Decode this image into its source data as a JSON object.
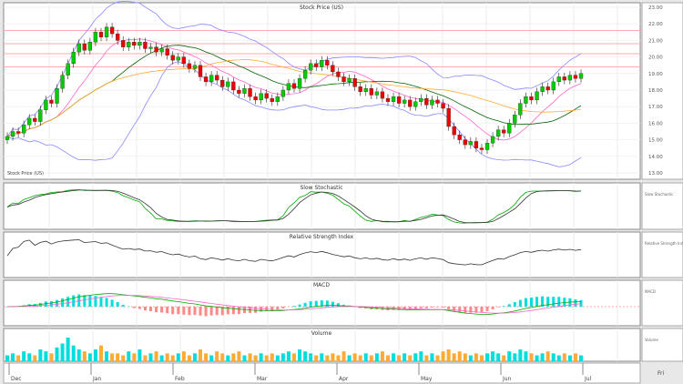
{
  "chart_data": {
    "type": "candlestick",
    "title": "Stock Price (US)",
    "price_range": [
      13,
      23
    ],
    "price_ticks": [
      "23.00",
      "22.00",
      "21.00",
      "20.00",
      "19.00",
      "18.00",
      "17.00",
      "16.00",
      "15.00",
      "14.00",
      "13.00"
    ],
    "closes": [
      15.2,
      15.5,
      15.4,
      15.9,
      16.3,
      16.1,
      16.8,
      17.4,
      17.2,
      18.1,
      18.9,
      19.6,
      20.3,
      20.8,
      20.4,
      20.9,
      21.5,
      21.2,
      21.8,
      21.4,
      21.0,
      20.6,
      20.9,
      20.7,
      20.9,
      20.5,
      20.6,
      20.3,
      20.5,
      20.1,
      19.8,
      20.0,
      19.6,
      19.3,
      19.5,
      18.8,
      18.5,
      18.9,
      18.6,
      18.2,
      18.5,
      18.0,
      17.8,
      18.1,
      17.6,
      17.4,
      17.8,
      17.5,
      17.3,
      17.6,
      18.0,
      18.4,
      18.1,
      18.7,
      19.2,
      19.6,
      19.4,
      19.8,
      19.5,
      19.1,
      18.8,
      18.5,
      18.7,
      18.2,
      17.9,
      18.1,
      17.7,
      17.9,
      17.5,
      17.3,
      17.6,
      17.2,
      17.4,
      17.0,
      17.3,
      17.5,
      17.1,
      17.4,
      17.2,
      16.9,
      15.8,
      15.3,
      15.0,
      14.7,
      14.9,
      14.5,
      14.4,
      14.8,
      15.2,
      15.6,
      15.4,
      16.0,
      16.5,
      17.2,
      17.6,
      17.4,
      17.9,
      18.2,
      18.0,
      18.5,
      18.8,
      18.6,
      18.9,
      18.7,
      19.0
    ],
    "volumes": [
      3,
      4,
      3,
      5,
      4,
      3,
      6,
      5,
      4,
      7,
      9,
      12,
      8,
      6,
      5,
      4,
      6,
      8,
      5,
      4,
      4,
      3,
      5,
      4,
      6,
      3,
      4,
      5,
      3,
      4,
      3,
      4,
      5,
      3,
      4,
      6,
      4,
      3,
      5,
      4,
      3,
      4,
      5,
      3,
      4,
      3,
      4,
      3,
      4,
      3,
      4,
      5,
      4,
      6,
      5,
      4,
      3,
      4,
      3,
      4,
      3,
      5,
      3,
      4,
      3,
      4,
      3,
      4,
      5,
      3,
      4,
      3,
      4,
      3,
      4,
      5,
      3,
      4,
      3,
      5,
      6,
      4,
      5,
      4,
      3,
      4,
      3,
      4,
      5,
      4,
      3,
      5,
      4,
      6,
      5,
      4,
      3,
      4,
      5,
      4,
      3,
      4,
      3,
      4,
      3
    ],
    "resistance_lines": [
      21.6,
      20.8,
      20.2,
      19.4
    ],
    "indicators": [
      "Slow Stochastic",
      "Relative Strength Index",
      "MACD",
      "Volume"
    ],
    "date_labels": [
      "Dec",
      "Jan",
      "Feb",
      "Mar",
      "Apr",
      "May",
      "Jun",
      "Jul"
    ],
    "colors": {
      "up": "#00cc00",
      "down": "#ee0000",
      "bollinger": "#8888ff",
      "sma_fast": "#ff66cc",
      "sma_mid": "#006600",
      "sma_slow": "#ffaa33",
      "macd_hist": "#00dddd",
      "volume_up": "#00dddd",
      "volume_down": "#ffaa33"
    }
  },
  "panel_labels": {
    "main": "Stock Price (US)",
    "stoch": "Slow Stochastic",
    "rsi": "Relative Strength Index",
    "macd": "MACD",
    "volume": "Volume"
  },
  "corner_label": "Fri"
}
